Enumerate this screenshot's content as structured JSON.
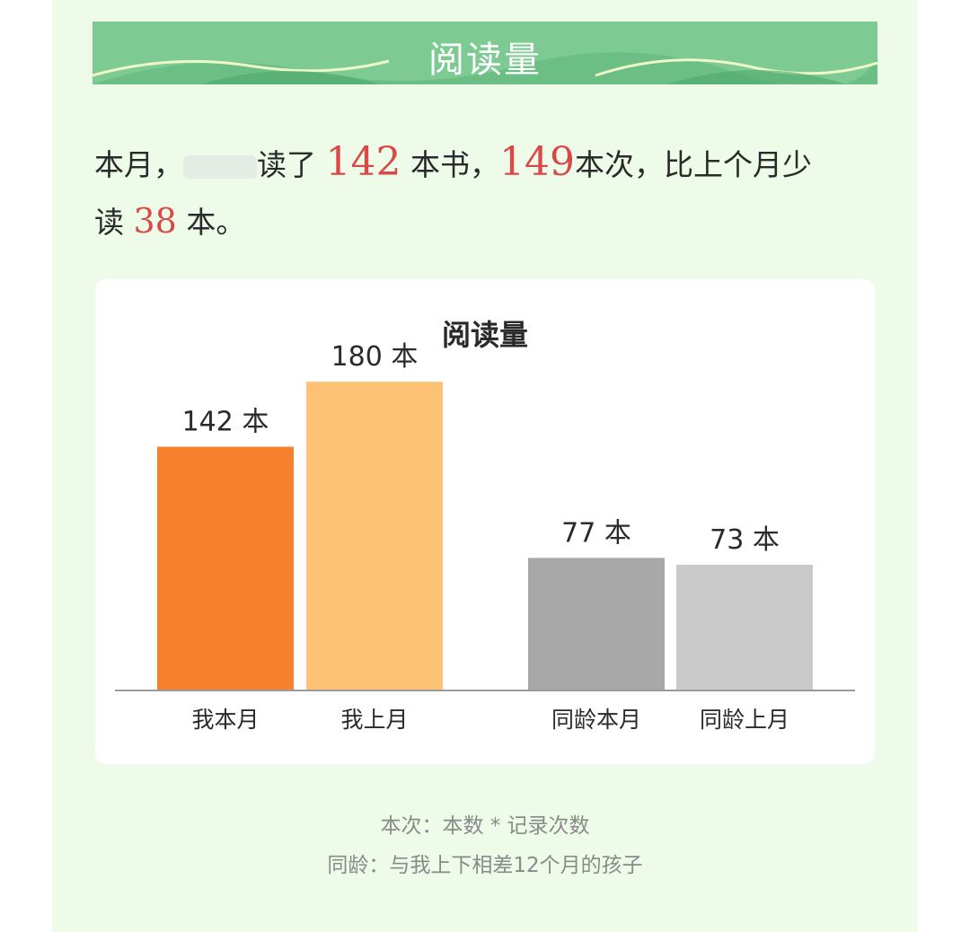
{
  "banner": {
    "title": "阅读量"
  },
  "summary": {
    "prefix": "本月，",
    "read_verb": "读了 ",
    "books": "142",
    "books_unit": " 本书，",
    "times": "149",
    "times_unit": "本次，比上个月少",
    "line2_prefix": "读 ",
    "diff": "38",
    "diff_unit": " 本。"
  },
  "colors": {
    "panel_bg": "#eefbe9",
    "banner_green": "#7dcb93",
    "highlight_red": "#d84a4a",
    "bar_my_this_month": "#f5812d",
    "bar_my_last_month": "#fdc275",
    "bar_peer_this_month": "#a8a8a8",
    "bar_peer_last_month": "#cacaca"
  },
  "chart_data": {
    "type": "bar",
    "title": "阅读量",
    "categories": [
      "我本月",
      "我上月",
      "同龄本月",
      "同龄上月"
    ],
    "values": [
      142,
      180,
      77,
      73
    ],
    "value_labels": [
      "142 本",
      "180 本",
      "77 本",
      "73 本"
    ],
    "unit": "本",
    "ylim": [
      0,
      220
    ],
    "grid": false,
    "legend": "none",
    "bar_colors": [
      "#f5812d",
      "#fdc275",
      "#a8a8a8",
      "#cacaca"
    ]
  },
  "footnotes": [
    "本次：本数 * 记录次数",
    "同龄：与我上下相差12个月的孩子"
  ]
}
